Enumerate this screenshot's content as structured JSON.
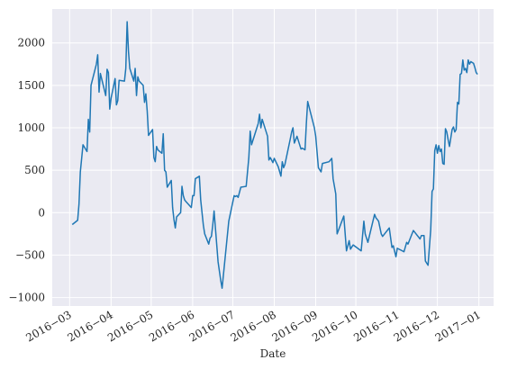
{
  "chart_data": {
    "type": "line",
    "xlabel": "Date",
    "color": "#1f77b4",
    "grid": true,
    "xlim": [
      "2016-02-17",
      "2017-01-12"
    ],
    "ylim": [
      -1100,
      2400
    ],
    "xticks": [
      {
        "value": "2016-03-01",
        "label": "2016−03"
      },
      {
        "value": "2016-04-01",
        "label": "2016−04"
      },
      {
        "value": "2016-05-01",
        "label": "2016−05"
      },
      {
        "value": "2016-06-01",
        "label": "2016−06"
      },
      {
        "value": "2016-07-01",
        "label": "2016−07"
      },
      {
        "value": "2016-08-01",
        "label": "2016−08"
      },
      {
        "value": "2016-09-01",
        "label": "2016−09"
      },
      {
        "value": "2016-10-01",
        "label": "2016−10"
      },
      {
        "value": "2016-11-01",
        "label": "2016−11"
      },
      {
        "value": "2016-12-01",
        "label": "2016−12"
      },
      {
        "value": "2017-01-01",
        "label": "2017−01"
      }
    ],
    "yticks": [
      {
        "value": -1000,
        "label": "−1000"
      },
      {
        "value": -500,
        "label": "−500"
      },
      0,
      500,
      1000,
      1500,
      2000
    ],
    "x": [
      "2016-03-03",
      "2016-03-07",
      "2016-03-08",
      "2016-03-09",
      "2016-03-11",
      "2016-03-14",
      "2016-03-15",
      "2016-03-16",
      "2016-03-17",
      "2016-03-21",
      "2016-03-22",
      "2016-03-23",
      "2016-03-24",
      "2016-03-28",
      "2016-03-29",
      "2016-03-30",
      "2016-03-31",
      "2016-04-01",
      "2016-04-04",
      "2016-04-05",
      "2016-04-06",
      "2016-04-07",
      "2016-04-11",
      "2016-04-12",
      "2016-04-13",
      "2016-04-14",
      "2016-04-15",
      "2016-04-18",
      "2016-04-19",
      "2016-04-20",
      "2016-04-21",
      "2016-04-22",
      "2016-04-25",
      "2016-04-26",
      "2016-04-27",
      "2016-04-28",
      "2016-04-29",
      "2016-05-02",
      "2016-05-03",
      "2016-05-04",
      "2016-05-05",
      "2016-05-06",
      "2016-05-09",
      "2016-05-10",
      "2016-05-11",
      "2016-05-12",
      "2016-05-13",
      "2016-05-16",
      "2016-05-17",
      "2016-05-18",
      "2016-05-19",
      "2016-05-20",
      "2016-05-23",
      "2016-05-24",
      "2016-05-25",
      "2016-05-26",
      "2016-05-27",
      "2016-05-31",
      "2016-06-01",
      "2016-06-02",
      "2016-06-03",
      "2016-06-06",
      "2016-06-07",
      "2016-06-08",
      "2016-06-09",
      "2016-06-10",
      "2016-06-13",
      "2016-06-14",
      "2016-06-15",
      "2016-06-16",
      "2016-06-17",
      "2016-06-20",
      "2016-06-22",
      "2016-06-23",
      "2016-06-28",
      "2016-07-02",
      "2016-07-03",
      "2016-07-04",
      "2016-07-05",
      "2016-07-07",
      "2016-07-11",
      "2016-07-13",
      "2016-07-14",
      "2016-07-15",
      "2016-07-19",
      "2016-07-20",
      "2016-07-21",
      "2016-07-22",
      "2016-07-23",
      "2016-07-27",
      "2016-07-28",
      "2016-07-29",
      "2016-07-31",
      "2016-08-01",
      "2016-08-04",
      "2016-08-06",
      "2016-08-07",
      "2016-08-08",
      "2016-08-09",
      "2016-08-13",
      "2016-08-14",
      "2016-08-15",
      "2016-08-16",
      "2016-08-18",
      "2016-08-21",
      "2016-08-22",
      "2016-08-24",
      "2016-08-25",
      "2016-08-26",
      "2016-08-31",
      "2016-09-01",
      "2016-09-03",
      "2016-09-05",
      "2016-09-06",
      "2016-09-11",
      "2016-09-13",
      "2016-09-14",
      "2016-09-16",
      "2016-09-17",
      "2016-09-22",
      "2016-09-24",
      "2016-09-26",
      "2016-09-27",
      "2016-09-29",
      "2016-10-05",
      "2016-10-07",
      "2016-10-08",
      "2016-10-10",
      "2016-10-15",
      "2016-10-16",
      "2016-10-18",
      "2016-10-20",
      "2016-10-21",
      "2016-10-26",
      "2016-10-28",
      "2016-10-29",
      "2016-10-31",
      "2016-11-01",
      "2016-11-06",
      "2016-11-08",
      "2016-11-09",
      "2016-11-11",
      "2016-11-13",
      "2016-11-18",
      "2016-11-19",
      "2016-11-21",
      "2016-11-22",
      "2016-11-24",
      "2016-11-26",
      "2016-11-27",
      "2016-11-28",
      "2016-11-29",
      "2016-11-30",
      "2016-12-01",
      "2016-12-02",
      "2016-12-03",
      "2016-12-04",
      "2016-12-05",
      "2016-12-06",
      "2016-12-07",
      "2016-12-08",
      "2016-12-09",
      "2016-12-10",
      "2016-12-12",
      "2016-12-13",
      "2016-12-14",
      "2016-12-15",
      "2016-12-16",
      "2016-12-17",
      "2016-12-18",
      "2016-12-19",
      "2016-12-20",
      "2016-12-21",
      "2016-12-22",
      "2016-12-23",
      "2016-12-24",
      "2016-12-25",
      "2016-12-26",
      "2016-12-28",
      "2016-12-29",
      "2016-12-30",
      "2016-12-31"
    ],
    "values": [
      -140,
      -90,
      100,
      480,
      800,
      720,
      1100,
      950,
      1500,
      1750,
      1860,
      1420,
      1640,
      1380,
      1690,
      1650,
      1220,
      1350,
      1580,
      1270,
      1320,
      1560,
      1550,
      1700,
      2250,
      1900,
      1700,
      1550,
      1700,
      1380,
      1600,
      1550,
      1500,
      1300,
      1400,
      1200,
      910,
      980,
      650,
      600,
      780,
      740,
      700,
      930,
      500,
      480,
      300,
      380,
      60,
      -80,
      -180,
      -50,
      0,
      310,
      200,
      150,
      130,
      60,
      200,
      200,
      400,
      430,
      150,
      0,
      -150,
      -250,
      -370,
      -300,
      -280,
      -150,
      20,
      -580,
      -800,
      -890,
      -100,
      200,
      190,
      200,
      180,
      300,
      310,
      650,
      960,
      800,
      1000,
      1050,
      1160,
      1000,
      1100,
      900,
      620,
      650,
      590,
      640,
      540,
      430,
      600,
      530,
      570,
      870,
      950,
      1000,
      820,
      900,
      750,
      760,
      740,
      1050,
      1310,
      1000,
      900,
      530,
      480,
      580,
      600,
      640,
      400,
      220,
      -250,
      -40,
      -450,
      -330,
      -430,
      -380,
      -450,
      -100,
      -250,
      -350,
      -20,
      -60,
      -100,
      -250,
      -280,
      -180,
      -410,
      -390,
      -520,
      -420,
      -460,
      -350,
      -370,
      -290,
      -210,
      -310,
      -270,
      -270,
      -570,
      -620,
      -200,
      250,
      280,
      730,
      800,
      700,
      790,
      720,
      750,
      580,
      570,
      990,
      950,
      860,
      780,
      980,
      1010,
      950,
      980,
      1300,
      1280,
      1630,
      1640,
      1800,
      1680,
      1700,
      1650,
      1800,
      1750,
      1780,
      1760,
      1710,
      1650,
      1630
    ]
  }
}
